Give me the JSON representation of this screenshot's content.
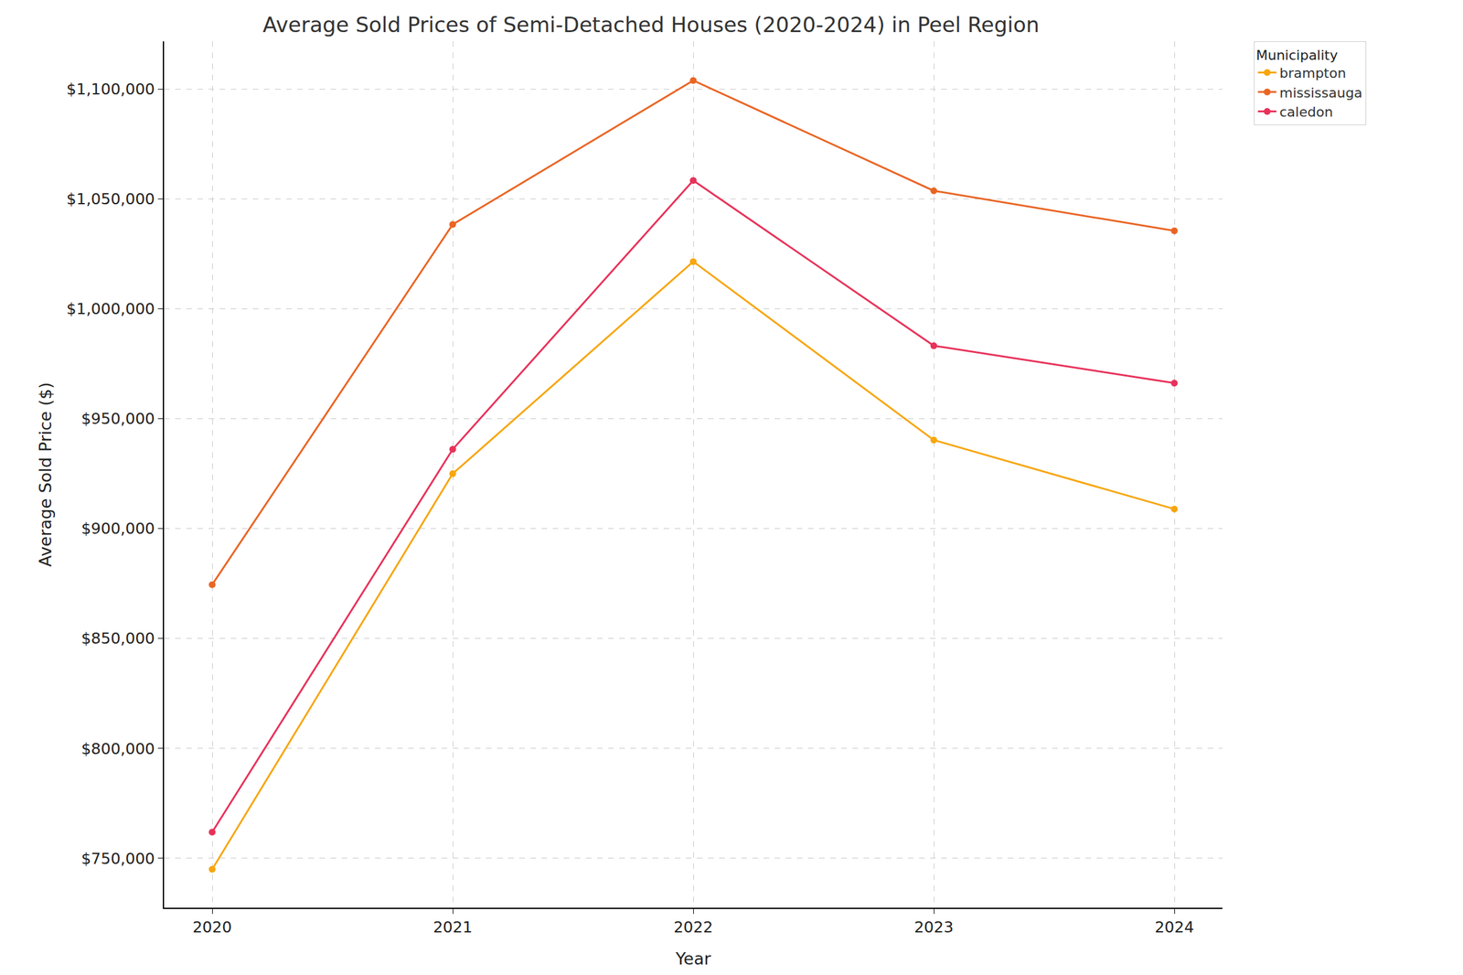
{
  "chart_data": {
    "type": "line",
    "title": "Average Sold Prices of Semi-Detached Houses (2020-2024) in Peel Region",
    "x_label": "Year",
    "y_label": "Average Sold Price ($)",
    "legend_title": "Municipality",
    "x": [
      2020,
      2021,
      2022,
      2023,
      2024
    ],
    "series": [
      {
        "name": "brampton",
        "color": "#f7a60f",
        "values": [
          745000,
          925000,
          1021500,
          940300,
          908900
        ]
      },
      {
        "name": "mississauga",
        "color": "#ea6524",
        "values": [
          874500,
          1038400,
          1103900,
          1053700,
          1035500
        ]
      },
      {
        "name": "caledon",
        "color": "#e8325a",
        "values": [
          761900,
          936100,
          1058400,
          983200,
          966200
        ]
      }
    ],
    "xlim": [
      2019.8,
      2024.2
    ],
    "xticks": [
      2020,
      2021,
      2022,
      2023,
      2024
    ],
    "ylim": [
      727500,
      1121700
    ],
    "yticks": [
      {
        "value": 750000,
        "label": "$750,000"
      },
      {
        "value": 800000,
        "label": "$800,000"
      },
      {
        "value": 850000,
        "label": "$850,000"
      },
      {
        "value": 900000,
        "label": "$900,000"
      },
      {
        "value": 950000,
        "label": "$950,000"
      },
      {
        "value": 1000000,
        "label": "$1,000,000"
      },
      {
        "value": 1050000,
        "label": "$1,050,000"
      },
      {
        "value": 1100000,
        "label": "$1,100,000"
      }
    ],
    "grid": true,
    "legend": "outside right",
    "marker": "circle",
    "line_style": "solid"
  }
}
